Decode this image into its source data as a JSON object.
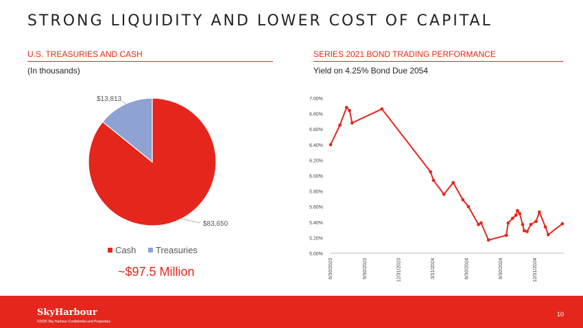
{
  "page": {
    "title": "STRONG LIQUIDITY AND LOWER COST OF CAPITAL",
    "page_number": "10"
  },
  "footer": {
    "logo_text": "SkyHarbour",
    "copyright": "©2025 Sky Harbour Confidential and Proprietary"
  },
  "colors": {
    "accent": "#e4261c",
    "treasuries": "#8ea2d3",
    "line": "#e4261c"
  },
  "left_panel": {
    "heading": "U.S. TREASURIES AND CASH",
    "subheading": "(In thousands)",
    "total_label": "~$97.5 Million"
  },
  "right_panel": {
    "heading": "SERIES 2021 BOND TRADING PERFORMANCE",
    "subheading": "Yield on 4.25% Bond Due 2054"
  },
  "chart_data": [
    {
      "type": "pie",
      "categories": [
        "Cash",
        "Treasuries"
      ],
      "values": [
        83650,
        13813
      ],
      "data_labels": [
        "$83,650",
        "$13,813"
      ],
      "legend": [
        "Cash",
        "Treasuries"
      ],
      "legend_position": "bottom"
    },
    {
      "type": "line",
      "series": [
        {
          "points": [
            [
              "2023-06-30",
              6.4
            ],
            [
              "2023-07-25",
              6.65
            ],
            [
              "2023-08-12",
              6.88
            ],
            [
              "2023-08-20",
              6.84
            ],
            [
              "2023-08-27",
              6.68
            ],
            [
              "2023-11-15",
              6.86
            ],
            [
              "2024-03-25",
              6.05
            ],
            [
              "2024-04-02",
              5.94
            ],
            [
              "2024-04-30",
              5.76
            ],
            [
              "2024-05-25",
              5.91
            ],
            [
              "2024-06-20",
              5.69
            ],
            [
              "2024-07-05",
              5.6
            ],
            [
              "2024-08-01",
              5.37
            ],
            [
              "2024-08-08",
              5.39
            ],
            [
              "2024-08-28",
              5.17
            ],
            [
              "2024-10-15",
              5.23
            ],
            [
              "2024-10-20",
              5.39
            ],
            [
              "2024-11-01",
              5.45
            ],
            [
              "2024-11-10",
              5.49
            ],
            [
              "2024-11-14",
              5.55
            ],
            [
              "2024-11-20",
              5.51
            ],
            [
              "2024-11-28",
              5.37
            ],
            [
              "2024-12-02",
              5.29
            ],
            [
              "2024-12-10",
              5.28
            ],
            [
              "2024-12-20",
              5.37
            ],
            [
              "2025-01-03",
              5.41
            ],
            [
              "2025-01-12",
              5.53
            ],
            [
              "2025-01-28",
              5.34
            ],
            [
              "2025-02-05",
              5.24
            ],
            [
              "2025-03-15",
              5.38
            ]
          ]
        }
      ],
      "x_tick_labels": [
        "6/30/2023",
        "9/30/2023",
        "12/31/2023",
        "3/31/2024",
        "6/30/2024",
        "9/30/2024",
        "12/31/2024"
      ],
      "x_ticks": [
        "2023-06-30",
        "2023-09-30",
        "2023-12-31",
        "2024-03-31",
        "2024-06-30",
        "2024-09-30",
        "2024-12-31"
      ],
      "xlim": [
        "2023-06-30",
        "2025-03-15"
      ],
      "y_tick_labels": [
        "5.00%",
        "5.20%",
        "5.40%",
        "5.60%",
        "5.80%",
        "6.00%",
        "6.20%",
        "6.40%",
        "6.60%",
        "6.80%",
        "7.00%"
      ],
      "ylim": [
        5.0,
        7.0
      ],
      "grid": false
    }
  ]
}
